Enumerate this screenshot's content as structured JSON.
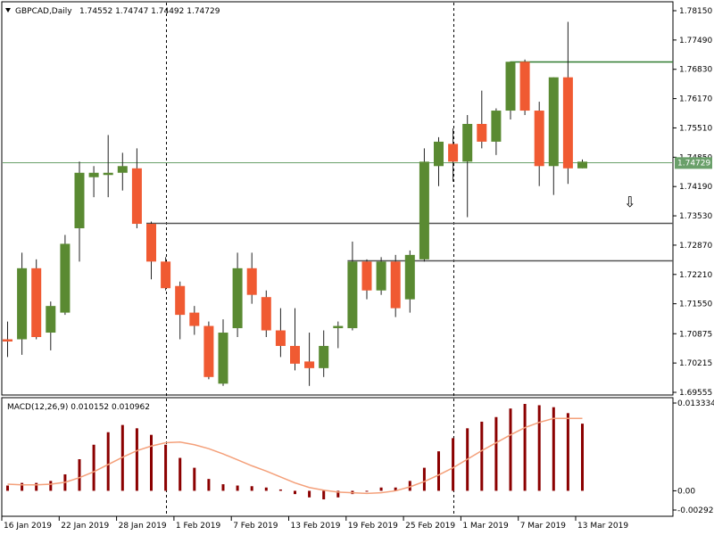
{
  "window": {
    "symbol": "GBPCAD,Daily",
    "ohlc": "1.74552 1.74747 1.74492 1.74729",
    "menu_icon": "triangle-down-icon"
  },
  "colors": {
    "bull": "#5a8a32",
    "bear": "#f05a32",
    "wick": "#222222",
    "grid_vline": "#000000",
    "hline_green": "#2f7a2f",
    "hline_gray": "#555555",
    "bid_line": "#6aa06a",
    "macd_hist": "#8b0000",
    "macd_signal": "#f4a07a",
    "price_tag_bg": "#6aa06a"
  },
  "chart_data": {
    "type": "candlestick",
    "price_axis": {
      "ticks": [
        "1.78150",
        "1.77490",
        "1.76830",
        "1.76170",
        "1.75510",
        "1.74850",
        "1.74190",
        "1.73530",
        "1.72870",
        "1.72210",
        "1.71550",
        "1.70875",
        "1.70215",
        "1.69555"
      ],
      "current_price_label": "1.74729",
      "ylim": [
        1.69555,
        1.7815
      ]
    },
    "time_axis": {
      "labels": [
        "16 Jan 2019",
        "22 Jan 2019",
        "28 Jan 2019",
        "1 Feb 2019",
        "7 Feb 2019",
        "13 Feb 2019",
        "19 Feb 2019",
        "25 Feb 2019",
        "1 Mar 2019",
        "7 Mar 2019",
        "13 Mar 2019"
      ]
    },
    "candles": [
      {
        "o": 1.7075,
        "h": 1.7115,
        "l": 1.7035,
        "c": 1.707
      },
      {
        "o": 1.7075,
        "h": 1.727,
        "l": 1.704,
        "c": 1.7235
      },
      {
        "o": 1.7235,
        "h": 1.7255,
        "l": 1.7075,
        "c": 1.708
      },
      {
        "o": 1.709,
        "h": 1.716,
        "l": 1.705,
        "c": 1.715
      },
      {
        "o": 1.7135,
        "h": 1.731,
        "l": 1.713,
        "c": 1.729
      },
      {
        "o": 1.7325,
        "h": 1.7475,
        "l": 1.725,
        "c": 1.745
      },
      {
        "o": 1.744,
        "h": 1.7465,
        "l": 1.7395,
        "c": 1.745
      },
      {
        "o": 1.7445,
        "h": 1.7535,
        "l": 1.7395,
        "c": 1.745
      },
      {
        "o": 1.745,
        "h": 1.7495,
        "l": 1.741,
        "c": 1.7465
      },
      {
        "o": 1.746,
        "h": 1.7505,
        "l": 1.7325,
        "c": 1.7335
      },
      {
        "o": 1.7335,
        "h": 1.734,
        "l": 1.721,
        "c": 1.725
      },
      {
        "o": 1.725,
        "h": 1.726,
        "l": 1.7185,
        "c": 1.719
      },
      {
        "o": 1.7195,
        "h": 1.7205,
        "l": 1.7075,
        "c": 1.713
      },
      {
        "o": 1.7135,
        "h": 1.715,
        "l": 1.7085,
        "c": 1.7105
      },
      {
        "o": 1.7105,
        "h": 1.7115,
        "l": 1.6985,
        "c": 1.699
      },
      {
        "o": 1.6975,
        "h": 1.712,
        "l": 1.697,
        "c": 1.709
      },
      {
        "o": 1.71,
        "h": 1.727,
        "l": 1.708,
        "c": 1.7235
      },
      {
        "o": 1.7235,
        "h": 1.727,
        "l": 1.7155,
        "c": 1.7175
      },
      {
        "o": 1.717,
        "h": 1.7185,
        "l": 1.708,
        "c": 1.7095
      },
      {
        "o": 1.7095,
        "h": 1.7145,
        "l": 1.7035,
        "c": 1.706
      },
      {
        "o": 1.706,
        "h": 1.7145,
        "l": 1.7005,
        "c": 1.702
      },
      {
        "o": 1.7025,
        "h": 1.709,
        "l": 1.697,
        "c": 1.701
      },
      {
        "o": 1.701,
        "h": 1.7095,
        "l": 1.699,
        "c": 1.706
      },
      {
        "o": 1.71,
        "h": 1.7115,
        "l": 1.7055,
        "c": 1.7105
      },
      {
        "o": 1.71,
        "h": 1.7295,
        "l": 1.7095,
        "c": 1.725
      },
      {
        "o": 1.725,
        "h": 1.7255,
        "l": 1.7165,
        "c": 1.7185
      },
      {
        "o": 1.7185,
        "h": 1.726,
        "l": 1.7175,
        "c": 1.725
      },
      {
        "o": 1.725,
        "h": 1.7265,
        "l": 1.7125,
        "c": 1.7145
      },
      {
        "o": 1.7165,
        "h": 1.7275,
        "l": 1.7135,
        "c": 1.7265
      },
      {
        "o": 1.7255,
        "h": 1.7505,
        "l": 1.725,
        "c": 1.7475
      },
      {
        "o": 1.7465,
        "h": 1.753,
        "l": 1.742,
        "c": 1.752
      },
      {
        "o": 1.7515,
        "h": 1.755,
        "l": 1.743,
        "c": 1.7475
      },
      {
        "o": 1.7475,
        "h": 1.758,
        "l": 1.735,
        "c": 1.756
      },
      {
        "o": 1.756,
        "h": 1.7635,
        "l": 1.7505,
        "c": 1.752
      },
      {
        "o": 1.752,
        "h": 1.7595,
        "l": 1.749,
        "c": 1.759
      },
      {
        "o": 1.759,
        "h": 1.77,
        "l": 1.757,
        "c": 1.77
      },
      {
        "o": 1.77,
        "h": 1.7705,
        "l": 1.758,
        "c": 1.759
      },
      {
        "o": 1.759,
        "h": 1.761,
        "l": 1.742,
        "c": 1.7465
      },
      {
        "o": 1.7465,
        "h": 1.7665,
        "l": 1.74,
        "c": 1.7665
      },
      {
        "o": 1.7665,
        "h": 1.779,
        "l": 1.7425,
        "c": 1.746
      },
      {
        "o": 1.746,
        "h": 1.748,
        "l": 1.746,
        "c": 1.7475
      }
    ],
    "horizontal_lines": [
      {
        "price": 1.77,
        "style": "green"
      },
      {
        "price": 1.7338,
        "style": "gray"
      },
      {
        "price": 1.7253,
        "style": "gray"
      },
      {
        "price": 1.74729,
        "style": "bid"
      }
    ],
    "vertical_separators_at_candle": [
      11,
      31
    ],
    "arrow_marker": {
      "symbol": "⇩",
      "near_price": 1.7385,
      "icon": "down-arrow-icon"
    },
    "macd": {
      "label": "MACD(12,26,9) 0.010152 0.010962",
      "axis_ticks": [
        "0.013334",
        "0.00",
        "-0.002921"
      ],
      "ylim": [
        -0.002921,
        0.013334
      ],
      "histogram": [
        0.0008,
        0.0012,
        0.0012,
        0.0015,
        0.0025,
        0.0048,
        0.007,
        0.0089,
        0.01,
        0.0095,
        0.0085,
        0.007,
        0.005,
        0.0035,
        0.0018,
        0.001,
        0.0008,
        0.0007,
        0.0005,
        0.0002,
        -0.0005,
        -0.001,
        -0.0013,
        -0.001,
        -0.0005,
        0.0,
        0.0005,
        0.0005,
        0.0015,
        0.0035,
        0.006,
        0.008,
        0.0095,
        0.0105,
        0.0112,
        0.0125,
        0.0132,
        0.013,
        0.0127,
        0.0118,
        0.0102
      ],
      "signal": [
        0.001,
        0.0009,
        0.0009,
        0.001,
        0.0013,
        0.002,
        0.0029,
        0.004,
        0.0051,
        0.0061,
        0.0068,
        0.0073,
        0.0074,
        0.007,
        0.0064,
        0.0056,
        0.0047,
        0.0038,
        0.003,
        0.0021,
        0.0012,
        0.0005,
        0.0001,
        -0.0002,
        -0.0003,
        -0.0004,
        -0.0003,
        0.0,
        0.0006,
        0.0014,
        0.0024,
        0.0035,
        0.0048,
        0.0061,
        0.0073,
        0.0085,
        0.0096,
        0.0104,
        0.011,
        0.011,
        0.011
      ]
    }
  }
}
